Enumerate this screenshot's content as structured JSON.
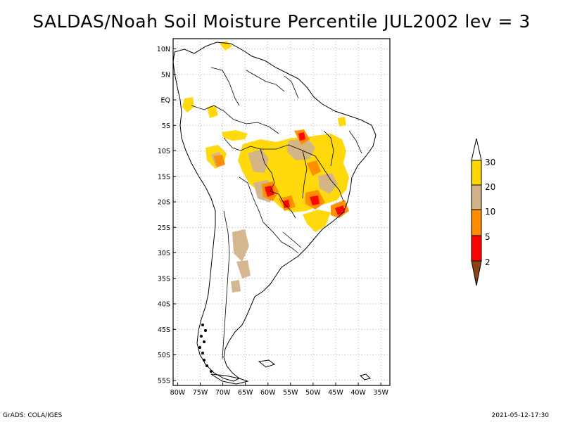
{
  "title": "SALDAS/Noah Soil Moisture Percentile JUL2002 lev = 3",
  "map": {
    "lon_labels": [
      "80W",
      "75W",
      "70W",
      "65W",
      "60W",
      "55W",
      "50W",
      "45W",
      "40W",
      "35W"
    ],
    "lat_labels": [
      "10N",
      "5N",
      "EQ",
      "5S",
      "10S",
      "15S",
      "20S",
      "25S",
      "30S",
      "35S",
      "40S",
      "45S",
      "50S",
      "55S"
    ],
    "lon_values": [
      -80,
      -75,
      -70,
      -65,
      -60,
      -55,
      -50,
      -45,
      -40,
      -35
    ],
    "lat_values": [
      10,
      5,
      0,
      -5,
      -10,
      -15,
      -20,
      -25,
      -30,
      -35,
      -40,
      -45,
      -50,
      -55
    ],
    "lon_range": [
      -81,
      -33
    ],
    "lat_range": [
      12,
      -56
    ]
  },
  "colorbar": {
    "labels": [
      "30",
      "20",
      "10",
      "5",
      "2"
    ],
    "colors": {
      "below_2": "#8b4513",
      "2_5": "#ff0000",
      "5_10": "#ff8c00",
      "10_20": "#d2b48c",
      "20_30": "#ffd700",
      "above_30": "#ffffff"
    }
  },
  "footer": {
    "left": "GrADS: COLA/IGES",
    "right": "2021-05-12-17:30"
  }
}
